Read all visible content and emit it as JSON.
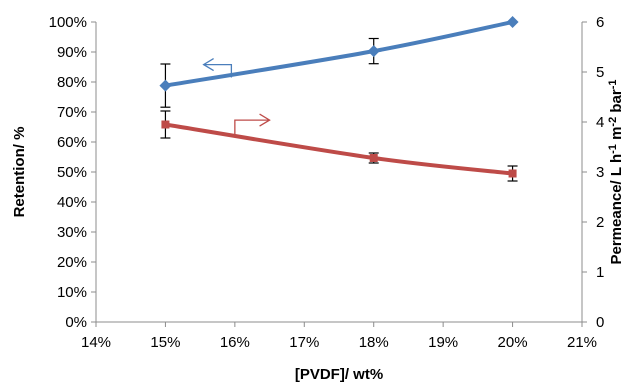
{
  "chart_data": {
    "type": "line",
    "xlabel": "[PVDF]/ wt%",
    "ylabel_left": "Retention/ %",
    "ylabel_right": "Permeance/ L h",
    "ylabel_right_parts": [
      {
        "text": "Permeance/ L h",
        "sup": false
      },
      {
        "text": "-1",
        "sup": true
      },
      {
        "text": " m",
        "sup": false
      },
      {
        "text": "-2",
        "sup": true
      },
      {
        "text": " bar",
        "sup": false
      },
      {
        "text": "-1",
        "sup": true
      }
    ],
    "x_range": [
      14,
      21
    ],
    "x_ticks": [
      14,
      15,
      16,
      17,
      18,
      19,
      20,
      21
    ],
    "x_tick_labels": [
      "14%",
      "15%",
      "16%",
      "17%",
      "18%",
      "19%",
      "20%",
      "21%"
    ],
    "y_left_range": [
      0,
      100
    ],
    "y_left_ticks": [
      0,
      10,
      20,
      30,
      40,
      50,
      60,
      70,
      80,
      90,
      100
    ],
    "y_left_tick_labels": [
      "0%",
      "10%",
      "20%",
      "30%",
      "40%",
      "50%",
      "60%",
      "70%",
      "80%",
      "90%",
      "100%"
    ],
    "y_right_range": [
      0,
      6
    ],
    "y_right_ticks": [
      0,
      1,
      2,
      3,
      4,
      5,
      6
    ],
    "y_right_tick_labels": [
      "0",
      "1",
      "2",
      "3",
      "4",
      "5",
      "6"
    ],
    "grid": false,
    "series": [
      {
        "axis": "left",
        "color": "#4a7ebb",
        "marker": "diamond",
        "x": [
          15,
          18,
          20
        ],
        "y": [
          78.8,
          90.3,
          100
        ],
        "err": [
          7.2,
          4.2,
          0
        ],
        "indicator": "left-arrow"
      },
      {
        "axis": "right",
        "color": "#be4b48",
        "marker": "square",
        "x": [
          15,
          18,
          20
        ],
        "y": [
          3.95,
          3.28,
          2.97
        ],
        "err": [
          0.27,
          0.1,
          0.15
        ],
        "indicator": "right-arrow"
      }
    ]
  }
}
